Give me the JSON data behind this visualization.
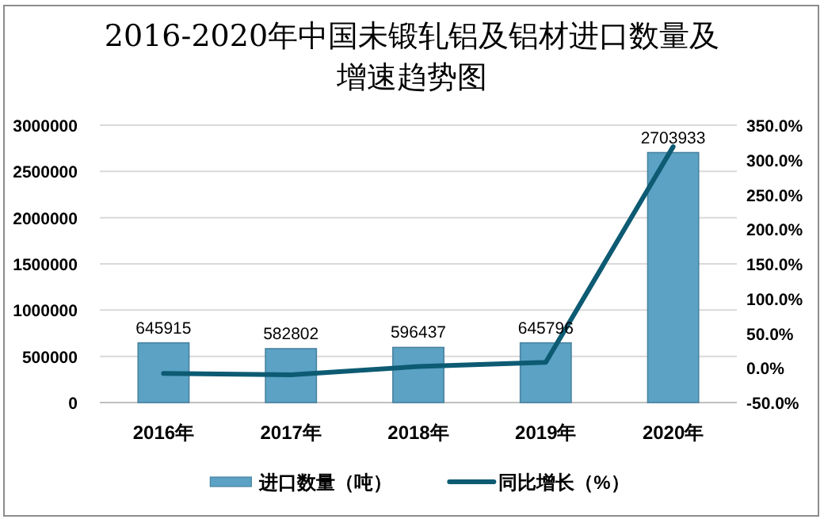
{
  "chart_data": {
    "type": "bar",
    "title": "2016-2020年中国未锻轧铝及铝材进口数量及增速趋势图",
    "categories": [
      "2016年",
      "2017年",
      "2018年",
      "2019年",
      "2020年"
    ],
    "series": [
      {
        "name": "进口数量（吨）",
        "color": "#5ba2c4",
        "values": [
          645915,
          582802,
          596437,
          645796,
          2703933
        ],
        "value_labels": [
          "645915",
          "582802",
          "596437",
          "645796",
          "2703933"
        ]
      },
      {
        "name": "同比增长（%）",
        "type": "line",
        "axis": "y2",
        "color": "#0d5b73",
        "values": [
          -8,
          -10,
          2,
          8,
          319
        ]
      }
    ],
    "ylim": [
      0,
      3000000
    ],
    "yticks": [
      0,
      500000,
      1000000,
      1500000,
      2000000,
      2500000,
      3000000
    ],
    "y2lim": [
      -50,
      350
    ],
    "y2ticks": [
      {
        "value": -50,
        "label": "-50.0%"
      },
      {
        "value": 0,
        "label": "0.0%"
      },
      {
        "value": 50,
        "label": "50.0%"
      },
      {
        "value": 100,
        "label": "100.0%"
      },
      {
        "value": 150,
        "label": "150.0%"
      },
      {
        "value": 200,
        "label": "200.0%"
      },
      {
        "value": 250,
        "label": "250.0%"
      },
      {
        "value": 300,
        "label": "300.0%"
      },
      {
        "value": 350,
        "label": "350.0%"
      }
    ],
    "grid": "y",
    "legend": "bottom"
  }
}
